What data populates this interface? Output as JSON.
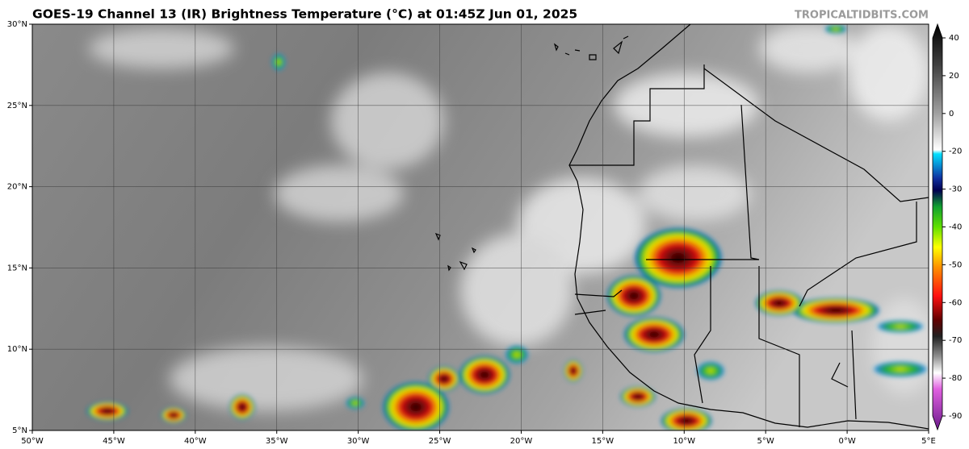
{
  "title": "GOES-19 Channel 13 (IR) Brightness Temperature (°C) at 01:45Z Jun 01, 2025",
  "watermark": "TROPICALTIDBITS.COM",
  "lat_labels": [
    "30°N",
    "25°N",
    "20°N",
    "15°N",
    "10°N",
    "5°N"
  ],
  "lon_labels": [
    "50°W",
    "45°W",
    "40°W",
    "35°W",
    "30°W",
    "25°W",
    "20°W",
    "15°W",
    "10°W",
    "5°W",
    "0°W",
    "5°E"
  ],
  "colorbar": {
    "ticks": [
      40,
      20,
      0,
      -20,
      -30,
      -40,
      -50,
      -60,
      -70,
      -80,
      -90
    ]
  }
}
